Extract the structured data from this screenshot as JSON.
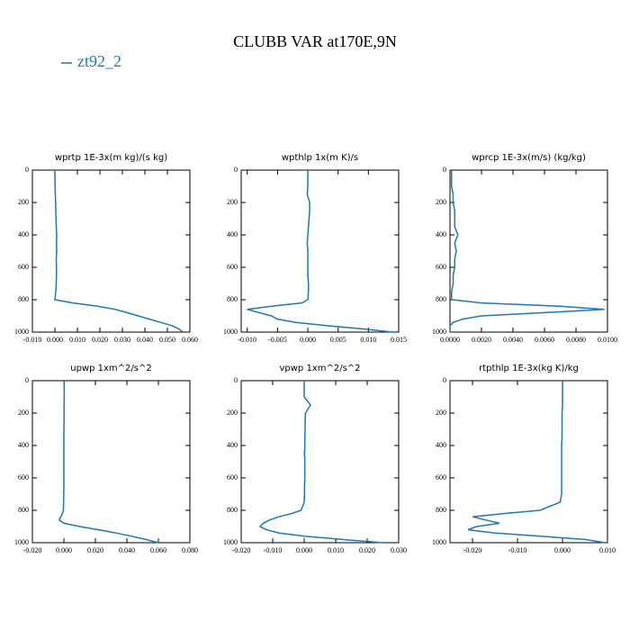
{
  "title": "CLUBB VAR at170E,9N",
  "chart_data": [
    {
      "type": "line",
      "title": "wprtp  1E-3x(m kg)/(s kg)",
      "xlim": [
        -0.01,
        0.06
      ],
      "xticks": [
        {
          "value": -0.01,
          "label": "-0.010"
        },
        {
          "value": 0,
          "label": "0.000"
        },
        {
          "value": 0.01,
          "label": "0.010"
        },
        {
          "value": 0.02,
          "label": "0.020"
        },
        {
          "value": 0.03,
          "label": "0.030"
        },
        {
          "value": 0.04,
          "label": "0.040"
        },
        {
          "value": 0.05,
          "label": "0.050"
        },
        {
          "value": 0.06,
          "label": "0.060"
        }
      ],
      "ylim": [
        0,
        1000
      ],
      "yticks": [
        0,
        200,
        400,
        600,
        800,
        1000
      ],
      "yaxis_inverted": true,
      "y": [
        0,
        50,
        100,
        150,
        200,
        250,
        300,
        350,
        400,
        450,
        500,
        550,
        600,
        650,
        700,
        750,
        800,
        820,
        840,
        860,
        880,
        900,
        920,
        940,
        960,
        980,
        1000
      ],
      "series": [
        {
          "name": "zt92_2",
          "color": "#1f77b4",
          "values": [
            0,
            0,
            0.0001,
            0.0002,
            0.0003,
            0.0004,
            0.0005,
            0.0006,
            0.0008,
            0.0007,
            0.0008,
            0.0006,
            0.0007,
            0.0007,
            0.0006,
            0.0004,
            0,
            0.008,
            0.019,
            0.027,
            0.032,
            0.037,
            0.042,
            0.047,
            0.052,
            0.055,
            0.057
          ]
        }
      ]
    },
    {
      "type": "line",
      "title": "wpthlp  1x(m K)/s",
      "xlim": [
        -0.011,
        0.015
      ],
      "xticks": [
        {
          "value": -0.01,
          "label": "-0.010"
        },
        {
          "value": -0.005,
          "label": "-0.005"
        },
        {
          "value": 0,
          "label": "0.000"
        },
        {
          "value": 0.005,
          "label": "0.005"
        },
        {
          "value": 0.01,
          "label": "0.010"
        },
        {
          "value": 0.015,
          "label": "0.015"
        }
      ],
      "ylim": [
        0,
        1000
      ],
      "yticks": [
        0,
        200,
        400,
        600,
        800,
        1000
      ],
      "yaxis_inverted": true,
      "y": [
        0,
        50,
        100,
        150,
        200,
        250,
        300,
        350,
        400,
        450,
        500,
        550,
        600,
        650,
        700,
        750,
        800,
        820,
        840,
        860,
        880,
        900,
        920,
        940,
        960,
        980,
        1000
      ],
      "series": [
        {
          "name": "zt92_2",
          "color": "#1f77b4",
          "values": [
            0,
            0,
            0,
            -0.0001,
            0.0003,
            0.0003,
            0.0002,
            0.0001,
            0,
            -0.0001,
            0,
            0,
            0,
            0,
            0.0001,
            0.0001,
            0,
            -0.001,
            -0.006,
            -0.01,
            -0.008,
            -0.006,
            -0.005,
            -0.002,
            0.003,
            0.009,
            0.014
          ]
        }
      ]
    },
    {
      "type": "line",
      "title": "wprcp  1E-3x(m/s) (kg/kg)",
      "xlim": [
        0,
        0.01
      ],
      "xticks": [
        {
          "value": 0,
          "label": "0.0000"
        },
        {
          "value": 0.002,
          "label": "0.0020"
        },
        {
          "value": 0.004,
          "label": "0.0040"
        },
        {
          "value": 0.006,
          "label": "0.0060"
        },
        {
          "value": 0.008,
          "label": "0.0080"
        },
        {
          "value": 0.01,
          "label": "0.0100"
        }
      ],
      "ylim": [
        0,
        1000
      ],
      "yticks": [
        0,
        200,
        400,
        600,
        800,
        1000
      ],
      "yaxis_inverted": true,
      "y": [
        0,
        50,
        100,
        150,
        200,
        250,
        300,
        350,
        400,
        450,
        500,
        550,
        600,
        650,
        700,
        750,
        800,
        820,
        840,
        860,
        880,
        900,
        920,
        940,
        960,
        980,
        1000
      ],
      "series": [
        {
          "name": "zt92_2",
          "color": "#1f77b4",
          "values": [
            0.0001,
            0.0001,
            0.0001,
            0.0002,
            0.0002,
            0.0003,
            0.0003,
            0.0003,
            0.0005,
            0.0003,
            0.0004,
            0.0003,
            0.0003,
            0.0002,
            0.0002,
            0.0001,
            0.0001,
            0.002,
            0.007,
            0.0098,
            0.006,
            0.002,
            0.0008,
            0.0002,
            0,
            0,
            0
          ]
        }
      ]
    },
    {
      "type": "line",
      "title": "upwp  1xm^2/s^2",
      "xlim": [
        -0.02,
        0.08
      ],
      "xticks": [
        {
          "value": -0.02,
          "label": "-0.020"
        },
        {
          "value": 0,
          "label": "0.000"
        },
        {
          "value": 0.02,
          "label": "0.020"
        },
        {
          "value": 0.04,
          "label": "0.040"
        },
        {
          "value": 0.06,
          "label": "0.060"
        },
        {
          "value": 0.08,
          "label": "0.080"
        }
      ],
      "ylim": [
        0,
        1000
      ],
      "yticks": [
        0,
        200,
        400,
        600,
        800,
        1000
      ],
      "yaxis_inverted": true,
      "y": [
        0,
        50,
        100,
        150,
        200,
        250,
        300,
        350,
        400,
        450,
        500,
        550,
        600,
        650,
        700,
        750,
        800,
        820,
        840,
        860,
        880,
        900,
        920,
        940,
        960,
        980,
        1000
      ],
      "series": [
        {
          "name": "zt92_2",
          "color": "#1f77b4",
          "values": [
            0.0002,
            0.0002,
            0.0002,
            0.0001,
            0.0001,
            0.0001,
            0,
            0,
            0,
            0,
            0,
            0,
            0,
            0,
            -0.0001,
            -0.0002,
            -0.0003,
            -0.001,
            -0.002,
            -0.003,
            0,
            0.01,
            0.022,
            0.033,
            0.043,
            0.052,
            0.06
          ]
        }
      ]
    },
    {
      "type": "line",
      "title": "vpwp  1xm^2/s^2",
      "xlim": [
        -0.02,
        0.03
      ],
      "xticks": [
        {
          "value": -0.02,
          "label": "-0.020"
        },
        {
          "value": -0.01,
          "label": "-0.010"
        },
        {
          "value": 0,
          "label": "0.000"
        },
        {
          "value": 0.01,
          "label": "0.010"
        },
        {
          "value": 0.02,
          "label": "0.020"
        },
        {
          "value": 0.03,
          "label": "0.030"
        }
      ],
      "ylim": [
        0,
        1000
      ],
      "yticks": [
        0,
        200,
        400,
        600,
        800,
        1000
      ],
      "yaxis_inverted": true,
      "y": [
        0,
        50,
        100,
        150,
        200,
        250,
        300,
        350,
        400,
        450,
        500,
        550,
        600,
        650,
        700,
        750,
        800,
        820,
        840,
        860,
        880,
        900,
        920,
        940,
        960,
        980,
        1000
      ],
      "series": [
        {
          "name": "zt92_2",
          "color": "#1f77b4",
          "values": [
            0,
            0,
            0,
            0.002,
            0.0004,
            0.0003,
            0.0003,
            0.0002,
            0.0002,
            0.0001,
            0.0002,
            0.0002,
            0.0002,
            0.0001,
            0.0001,
            0,
            -0.001,
            -0.004,
            -0.008,
            -0.011,
            -0.013,
            -0.014,
            -0.012,
            -0.008,
            0,
            0.012,
            0.025
          ]
        }
      ]
    },
    {
      "type": "line",
      "title": "rtpthlp  1E-3x(kg K)/kg",
      "xlim": [
        -0.025,
        0.01
      ],
      "xticks": [
        {
          "value": -0.02,
          "label": "-0.020"
        },
        {
          "value": -0.01,
          "label": "-0.010"
        },
        {
          "value": 0,
          "label": "0.000"
        },
        {
          "value": 0.01,
          "label": "0.010"
        }
      ],
      "ylim": [
        0,
        1000
      ],
      "yticks": [
        0,
        200,
        400,
        600,
        800,
        1000
      ],
      "yaxis_inverted": true,
      "y": [
        0,
        50,
        100,
        150,
        200,
        250,
        300,
        350,
        400,
        450,
        500,
        550,
        600,
        650,
        700,
        750,
        800,
        820,
        840,
        860,
        880,
        900,
        920,
        940,
        960,
        980,
        1000
      ],
      "series": [
        {
          "name": "zt92_2",
          "color": "#1f77b4",
          "values": [
            0,
            0,
            0,
            0,
            -0.0001,
            -0.0001,
            -0.0001,
            -0.0001,
            -0.0002,
            -0.0002,
            -0.0002,
            -0.0002,
            -0.0002,
            -0.0002,
            -0.0002,
            -0.0005,
            -0.005,
            -0.013,
            -0.02,
            -0.017,
            -0.014,
            -0.019,
            -0.021,
            -0.015,
            -0.005,
            0.005,
            0.0095
          ]
        }
      ]
    }
  ]
}
